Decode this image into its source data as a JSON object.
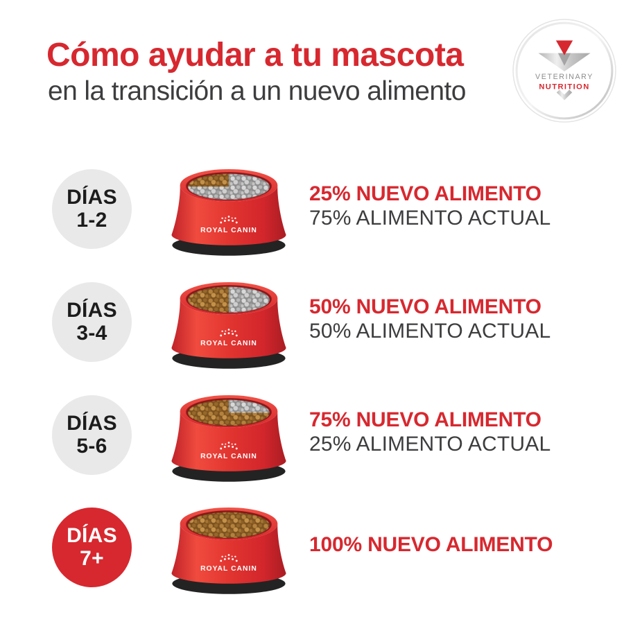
{
  "header": {
    "title": "Cómo ayudar a tu mascota",
    "subtitle": "en la transición a un nuevo alimento"
  },
  "badge": {
    "line1": "VETERINARY",
    "line2": "NUTRITION"
  },
  "bowl": {
    "brand": "ROYAL CANIN"
  },
  "rows": [
    {
      "day_label": "DÍAS",
      "day_range": "1-2",
      "highlight": false,
      "new_food_pct": 25,
      "current_food_pct": 75,
      "line1": "25% NUEVO ALIMENTO",
      "line2": "75% ALIMENTO ACTUAL"
    },
    {
      "day_label": "DÍAS",
      "day_range": "3-4",
      "highlight": false,
      "new_food_pct": 50,
      "current_food_pct": 50,
      "line1": "50% NUEVO ALIMENTO",
      "line2": "50% ALIMENTO ACTUAL"
    },
    {
      "day_label": "DÍAS",
      "day_range": "5-6",
      "highlight": false,
      "new_food_pct": 75,
      "current_food_pct": 25,
      "line1": "75% NUEVO ALIMENTO",
      "line2": "25% ALIMENTO ACTUAL"
    },
    {
      "day_label": "DÍAS",
      "day_range": "7+",
      "highlight": true,
      "new_food_pct": 100,
      "current_food_pct": 0,
      "line1": "100% NUEVO ALIMENTO",
      "line2": ""
    }
  ],
  "colors": {
    "red": "#d7282f",
    "dark_text": "#3d3d3f",
    "circle_gray": "#e9e9e9",
    "bowl_red": "#e03430",
    "bowl_base": "#232323",
    "kibble_new": "#b3823d",
    "kibble_current": "#bdbdbd"
  }
}
